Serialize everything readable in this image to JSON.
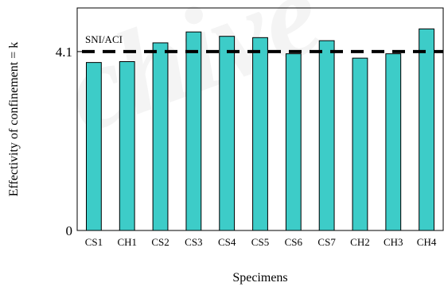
{
  "chart_data": {
    "type": "bar",
    "title": "",
    "xlabel": "Specimens",
    "ylabel": "Effectivity of confinement = k",
    "categories": [
      "CS1",
      "CH1",
      "CS2",
      "CS3",
      "CS4",
      "CS5",
      "CS6",
      "CS7",
      "CH2",
      "CH3",
      "CH4"
    ],
    "series": [
      {
        "values": [
          3.85,
          3.87,
          4.3,
          4.55,
          4.45,
          4.42,
          4.05,
          4.35,
          3.95,
          4.05,
          4.62
        ]
      }
    ],
    "yticks": [
      "0",
      "4.1"
    ],
    "ylim": [
      0,
      5.1
    ],
    "reference_line": {
      "value": 4.1,
      "label": "SNI/ACI",
      "style": "dashed"
    },
    "grid": false,
    "legend": "none",
    "colors": {
      "bar_fill": "#3dccc8",
      "bar_stroke": "#000000",
      "reference_line": "#000000"
    }
  }
}
